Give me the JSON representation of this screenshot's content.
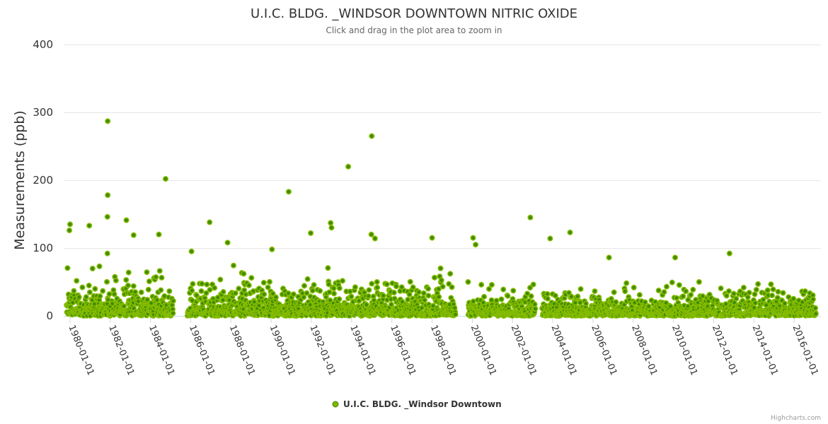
{
  "chart_data": {
    "type": "scatter",
    "title": "U.I.C. BLDG. _WINDSOR DOWNTOWN NITRIC OXIDE",
    "subtitle": "Click and drag in the plot area to zoom in",
    "ylabel": "Measurements (ppb)",
    "xlabel": "",
    "ylim": [
      0,
      400
    ],
    "yticks": [
      "0",
      "100",
      "200",
      "300",
      "400"
    ],
    "xlim": [
      "1979-09-01",
      "2017-03-01"
    ],
    "xticks": [
      "1980-01-01",
      "1982-01-01",
      "1984-01-01",
      "1986-01-01",
      "1988-01-01",
      "1990-01-01",
      "1992-01-01",
      "1994-01-01",
      "1996-01-01",
      "1998-01-01",
      "2000-01-01",
      "2002-01-01",
      "2004-01-01",
      "2006-01-01",
      "2008-01-01",
      "2010-01-01",
      "2012-01-01",
      "2014-01-01",
      "2016-01-01"
    ],
    "grid": true,
    "legend_placement": "bottom-center",
    "series": [
      {
        "name": "U.I.C. BLDG. _Windsor Downtown",
        "color": "#7cb400",
        "data_range": [
          "1979-11-01",
          "2017-02-01"
        ],
        "gaps": [
          [
            "1985-02-20",
            "1985-11-01"
          ],
          [
            "1999-03-01",
            "1999-10-15"
          ],
          [
            "2003-02-20",
            "2003-06-20"
          ]
        ],
        "typical_level_before_1999": 15,
        "typical_level_after_1999": 10,
        "notable_points": [
          [
            "1981-11-15",
            287
          ],
          [
            "1981-11-15",
            178
          ],
          [
            "1981-11-10",
            146
          ],
          [
            "1981-11-10",
            92
          ],
          [
            "1984-10-01",
            202
          ],
          [
            "1995-01-01",
            265
          ],
          [
            "1993-11-01",
            220
          ],
          [
            "1990-11-15",
            183
          ],
          [
            "2002-11-20",
            145
          ],
          [
            "1986-12-10",
            138
          ],
          [
            "1992-12-15",
            137
          ],
          [
            "1993-01-01",
            130
          ],
          [
            "1991-12-20",
            122
          ],
          [
            "1994-12-25",
            120
          ],
          [
            "1995-03-01",
            114
          ],
          [
            "2004-11-10",
            123
          ],
          [
            "2003-11-15",
            114
          ],
          [
            "2000-01-15",
            115
          ],
          [
            "1998-01-01",
            115
          ],
          [
            "2010-02-01",
            86
          ],
          [
            "2012-10-15",
            92
          ],
          [
            "2006-10-20",
            86
          ],
          [
            "1982-10-20",
            141
          ],
          [
            "1983-03-01",
            119
          ],
          [
            "1980-01-01",
            135
          ],
          [
            "1980-12-15",
            133
          ],
          [
            "1979-12-20",
            126
          ],
          [
            "2000-03-01",
            105
          ],
          [
            "1984-06-01",
            120
          ],
          [
            "1990-01-15",
            98
          ],
          [
            "1986-01-15",
            95
          ],
          [
            "1987-11-01",
            108
          ]
        ]
      }
    ],
    "credits": "Highcharts.com"
  }
}
